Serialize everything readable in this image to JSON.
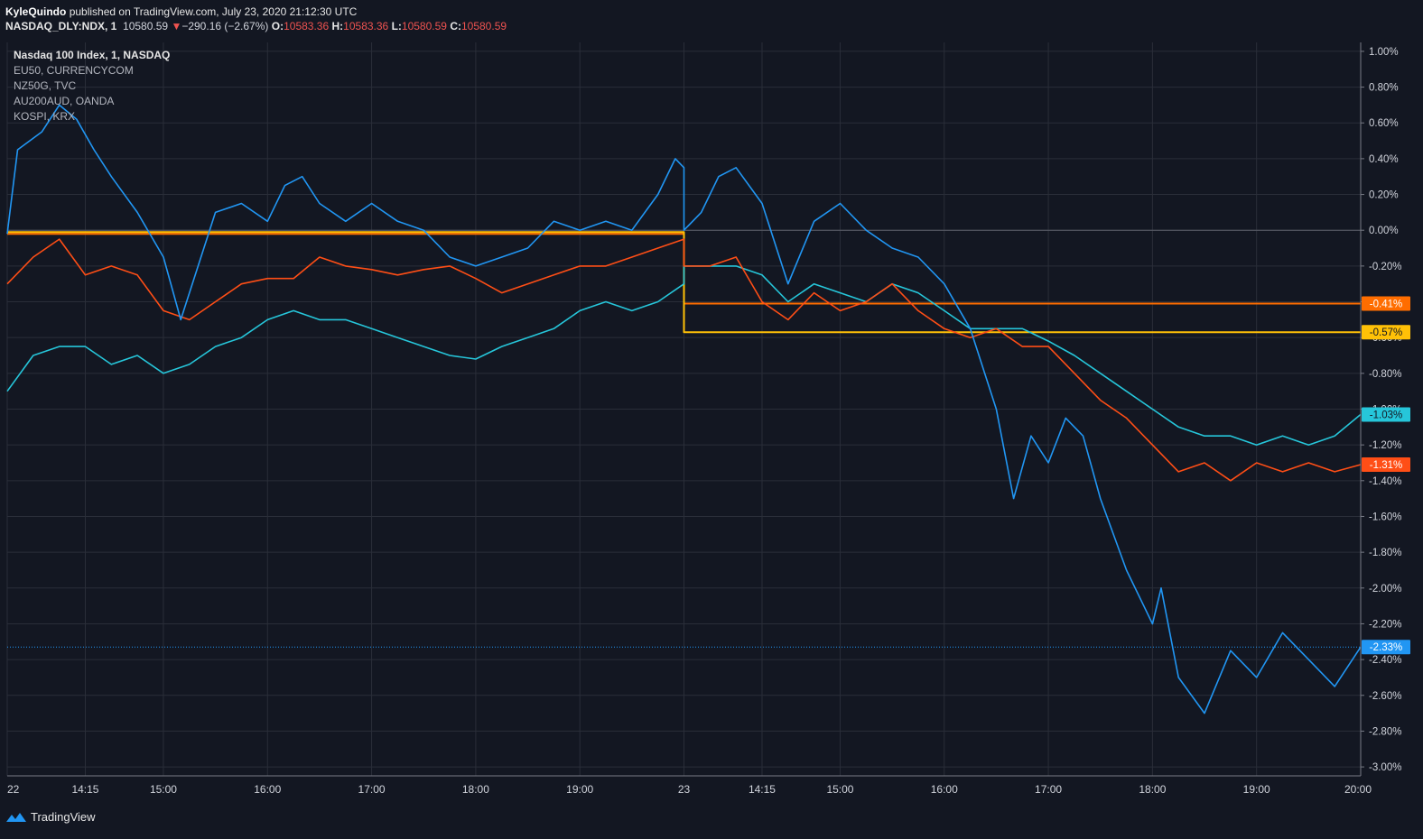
{
  "header": {
    "author": "KyleQuindo",
    "published": "published on TradingView.com, July 23, 2020 21:12:30 UTC",
    "symbol": "NASDAQ_DLY:NDX, 1",
    "last": "10580.59",
    "arrow": "▼",
    "change": "−290.16 (−2.67%)",
    "o_label": "O:",
    "o_value": "10583.36",
    "h_label": "H:",
    "h_value": "10583.36",
    "l_label": "L:",
    "l_value": "10580.59",
    "c_label": "C:",
    "c_value": "10580.59"
  },
  "legend": [
    "Nasdaq 100 Index, 1, NASDAQ",
    "EU50, CURRENCYCOM",
    "NZ50G, TVC",
    "AU200AUD, OANDA",
    "KOSPI, KRX"
  ],
  "footer": {
    "brand": "TradingView",
    "icon": "tradingview-logo-icon"
  },
  "colors": {
    "background": "#131722",
    "grid": "#2a2e39",
    "ndx": "#2196f3",
    "eu50": "#26c6da",
    "nz50": "#ff4e16",
    "au200": "#ff6d00",
    "kospi": "#ffc107"
  },
  "chart_data": {
    "type": "line",
    "y_unit": "%",
    "ylim": [
      -3.05,
      1.05
    ],
    "y_ticks": [
      "1.00%",
      "0.80%",
      "0.60%",
      "0.40%",
      "0.20%",
      "0.00%",
      "-0.20%",
      "-0.40%",
      "-0.60%",
      "-0.80%",
      "-1.00%",
      "-1.20%",
      "-1.40%",
      "-1.60%",
      "-1.80%",
      "-2.00%",
      "-2.20%",
      "-2.40%",
      "-2.60%",
      "-2.80%",
      "-3.00%"
    ],
    "y_tick_values": [
      1.0,
      0.8,
      0.6,
      0.4,
      0.2,
      0.0,
      -0.2,
      -0.4,
      -0.6,
      -0.8,
      -1.0,
      -1.2,
      -1.4,
      -1.6,
      -1.8,
      -2.0,
      -2.2,
      -2.4,
      -2.6,
      -2.8,
      -3.0
    ],
    "x_tick_labels": [
      "22",
      "14:15",
      "15:00",
      "16:00",
      "17:00",
      "18:00",
      "19:00",
      "23",
      "14:15",
      "15:00",
      "16:00",
      "17:00",
      "18:00",
      "19:00",
      "20:00"
    ],
    "x_tick_values": [
      "2020-07-22 13:30",
      "2020-07-22 14:15",
      "2020-07-22 15:00",
      "2020-07-22 16:00",
      "2020-07-22 17:00",
      "2020-07-22 18:00",
      "2020-07-22 19:00",
      "2020-07-23 13:30",
      "2020-07-23 14:15",
      "2020-07-23 15:00",
      "2020-07-23 16:00",
      "2020-07-23 17:00",
      "2020-07-23 18:00",
      "2020-07-23 19:00",
      "2020-07-23 20:00"
    ],
    "grid": true,
    "series": [
      {
        "name": "Nasdaq 100 Index, 1, NASDAQ",
        "key": "ndx",
        "last_label": "-2.33%",
        "last_value": -2.33,
        "x": [
          "2020-07-22 13:30",
          "2020-07-22 13:36",
          "2020-07-22 13:50",
          "2020-07-22 14:00",
          "2020-07-22 14:10",
          "2020-07-22 14:20",
          "2020-07-22 14:30",
          "2020-07-22 14:45",
          "2020-07-22 15:00",
          "2020-07-22 15:10",
          "2020-07-22 15:20",
          "2020-07-22 15:30",
          "2020-07-22 15:45",
          "2020-07-22 16:00",
          "2020-07-22 16:10",
          "2020-07-22 16:20",
          "2020-07-22 16:30",
          "2020-07-22 16:45",
          "2020-07-22 17:00",
          "2020-07-22 17:15",
          "2020-07-22 17:30",
          "2020-07-22 17:45",
          "2020-07-22 18:00",
          "2020-07-22 18:15",
          "2020-07-22 18:30",
          "2020-07-22 18:45",
          "2020-07-22 19:00",
          "2020-07-22 19:15",
          "2020-07-22 19:30",
          "2020-07-22 19:45",
          "2020-07-22 19:55",
          "2020-07-22 20:00",
          "2020-07-23 13:30",
          "2020-07-23 13:40",
          "2020-07-23 13:50",
          "2020-07-23 14:00",
          "2020-07-23 14:15",
          "2020-07-23 14:30",
          "2020-07-23 14:45",
          "2020-07-23 15:00",
          "2020-07-23 15:15",
          "2020-07-23 15:30",
          "2020-07-23 15:45",
          "2020-07-23 16:00",
          "2020-07-23 16:15",
          "2020-07-23 16:30",
          "2020-07-23 16:40",
          "2020-07-23 16:50",
          "2020-07-23 17:00",
          "2020-07-23 17:10",
          "2020-07-23 17:20",
          "2020-07-23 17:30",
          "2020-07-23 17:45",
          "2020-07-23 18:00",
          "2020-07-23 18:05",
          "2020-07-23 18:15",
          "2020-07-23 18:30",
          "2020-07-23 18:45",
          "2020-07-23 19:00",
          "2020-07-23 19:15",
          "2020-07-23 19:30",
          "2020-07-23 19:45",
          "2020-07-23 20:00"
        ],
        "y": [
          -0.02,
          0.45,
          0.55,
          0.7,
          0.62,
          0.45,
          0.3,
          0.1,
          -0.15,
          -0.5,
          -0.2,
          0.1,
          0.15,
          0.05,
          0.25,
          0.3,
          0.15,
          0.05,
          0.15,
          0.05,
          0.0,
          -0.15,
          -0.2,
          -0.15,
          -0.1,
          0.05,
          0.0,
          0.05,
          0.0,
          0.2,
          0.4,
          0.35,
          0.0,
          0.1,
          0.3,
          0.35,
          0.15,
          -0.3,
          0.05,
          0.15,
          0.0,
          -0.1,
          -0.15,
          -0.3,
          -0.55,
          -1.0,
          -1.5,
          -1.15,
          -1.3,
          -1.05,
          -1.15,
          -1.5,
          -1.9,
          -2.2,
          -2.0,
          -2.5,
          -2.7,
          -2.35,
          -2.5,
          -2.25,
          -2.4,
          -2.55,
          -2.33
        ]
      },
      {
        "name": "EU50, CURRENCYCOM",
        "key": "eu50",
        "last_label": "-1.03%",
        "last_value": -1.03,
        "x": [
          "2020-07-22 13:30",
          "2020-07-22 13:45",
          "2020-07-22 14:00",
          "2020-07-22 14:15",
          "2020-07-22 14:30",
          "2020-07-22 14:45",
          "2020-07-22 15:00",
          "2020-07-22 15:15",
          "2020-07-22 15:30",
          "2020-07-22 15:45",
          "2020-07-22 16:00",
          "2020-07-22 16:15",
          "2020-07-22 16:30",
          "2020-07-22 16:45",
          "2020-07-22 17:00",
          "2020-07-22 17:15",
          "2020-07-22 17:30",
          "2020-07-22 17:45",
          "2020-07-22 18:00",
          "2020-07-22 18:15",
          "2020-07-22 18:30",
          "2020-07-22 18:45",
          "2020-07-22 19:00",
          "2020-07-22 19:15",
          "2020-07-22 19:30",
          "2020-07-22 19:45",
          "2020-07-22 20:00",
          "2020-07-23 13:30",
          "2020-07-23 13:45",
          "2020-07-23 14:00",
          "2020-07-23 14:15",
          "2020-07-23 14:30",
          "2020-07-23 14:45",
          "2020-07-23 15:00",
          "2020-07-23 15:15",
          "2020-07-23 15:30",
          "2020-07-23 15:45",
          "2020-07-23 16:00",
          "2020-07-23 16:15",
          "2020-07-23 16:30",
          "2020-07-23 16:45",
          "2020-07-23 17:00",
          "2020-07-23 17:15",
          "2020-07-23 17:30",
          "2020-07-23 17:45",
          "2020-07-23 18:00",
          "2020-07-23 18:15",
          "2020-07-23 18:30",
          "2020-07-23 18:45",
          "2020-07-23 19:00",
          "2020-07-23 19:15",
          "2020-07-23 19:30",
          "2020-07-23 19:45",
          "2020-07-23 20:00"
        ],
        "y": [
          -0.9,
          -0.7,
          -0.65,
          -0.65,
          -0.75,
          -0.7,
          -0.8,
          -0.75,
          -0.65,
          -0.6,
          -0.5,
          -0.45,
          -0.5,
          -0.5,
          -0.55,
          -0.6,
          -0.65,
          -0.7,
          -0.72,
          -0.65,
          -0.6,
          -0.55,
          -0.45,
          -0.4,
          -0.45,
          -0.4,
          -0.3,
          -0.2,
          -0.2,
          -0.2,
          -0.25,
          -0.4,
          -0.3,
          -0.35,
          -0.4,
          -0.3,
          -0.35,
          -0.45,
          -0.55,
          -0.55,
          -0.55,
          -0.62,
          -0.7,
          -0.8,
          -0.9,
          -1.0,
          -1.1,
          -1.15,
          -1.15,
          -1.2,
          -1.15,
          -1.2,
          -1.15,
          -1.03
        ]
      },
      {
        "name": "NZ50G, TVC",
        "key": "nz50",
        "last_label": "-1.31%",
        "last_value": -1.31,
        "x": [
          "2020-07-22 13:30",
          "2020-07-22 13:45",
          "2020-07-22 14:00",
          "2020-07-22 14:15",
          "2020-07-22 14:30",
          "2020-07-22 14:45",
          "2020-07-22 15:00",
          "2020-07-22 15:15",
          "2020-07-22 15:30",
          "2020-07-22 15:45",
          "2020-07-22 16:00",
          "2020-07-22 16:15",
          "2020-07-22 16:30",
          "2020-07-22 16:45",
          "2020-07-22 17:00",
          "2020-07-22 17:15",
          "2020-07-22 17:30",
          "2020-07-22 17:45",
          "2020-07-22 18:00",
          "2020-07-22 18:15",
          "2020-07-22 18:30",
          "2020-07-22 18:45",
          "2020-07-22 19:00",
          "2020-07-22 19:15",
          "2020-07-22 19:30",
          "2020-07-22 19:45",
          "2020-07-22 20:00",
          "2020-07-23 13:30",
          "2020-07-23 13:45",
          "2020-07-23 14:00",
          "2020-07-23 14:15",
          "2020-07-23 14:30",
          "2020-07-23 14:45",
          "2020-07-23 15:00",
          "2020-07-23 15:15",
          "2020-07-23 15:30",
          "2020-07-23 15:45",
          "2020-07-23 16:00",
          "2020-07-23 16:15",
          "2020-07-23 16:30",
          "2020-07-23 16:45",
          "2020-07-23 17:00",
          "2020-07-23 17:15",
          "2020-07-23 17:30",
          "2020-07-23 17:45",
          "2020-07-23 18:00",
          "2020-07-23 18:15",
          "2020-07-23 18:30",
          "2020-07-23 18:45",
          "2020-07-23 19:00",
          "2020-07-23 19:15",
          "2020-07-23 19:30",
          "2020-07-23 19:45",
          "2020-07-23 20:00"
        ],
        "y": [
          -0.3,
          -0.15,
          -0.05,
          -0.25,
          -0.2,
          -0.25,
          -0.45,
          -0.5,
          -0.4,
          -0.3,
          -0.27,
          -0.27,
          -0.15,
          -0.2,
          -0.22,
          -0.25,
          -0.22,
          -0.2,
          -0.27,
          -0.35,
          -0.3,
          -0.25,
          -0.2,
          -0.2,
          -0.15,
          -0.1,
          -0.05,
          -0.2,
          -0.2,
          -0.15,
          -0.4,
          -0.5,
          -0.35,
          -0.45,
          -0.4,
          -0.3,
          -0.45,
          -0.55,
          -0.6,
          -0.55,
          -0.65,
          -0.65,
          -0.8,
          -0.95,
          -1.05,
          -1.2,
          -1.35,
          -1.3,
          -1.4,
          -1.3,
          -1.35,
          -1.3,
          -1.35,
          -1.31
        ]
      },
      {
        "name": "AU200AUD, OANDA",
        "key": "au200",
        "last_label": "-0.41%",
        "last_value": -0.41,
        "x": [
          "2020-07-22 13:30",
          "2020-07-22 20:00",
          "2020-07-23 13:30",
          "2020-07-23 20:00"
        ],
        "y": [
          -0.02,
          -0.02,
          -0.41,
          -0.41
        ]
      },
      {
        "name": "KOSPI, KRX",
        "key": "kospi",
        "last_label": "-0.57%",
        "last_value": -0.57,
        "x": [
          "2020-07-22 13:30",
          "2020-07-22 20:00",
          "2020-07-23 13:30",
          "2020-07-23 20:00"
        ],
        "y": [
          -0.01,
          -0.01,
          -0.57,
          -0.57
        ]
      }
    ]
  }
}
